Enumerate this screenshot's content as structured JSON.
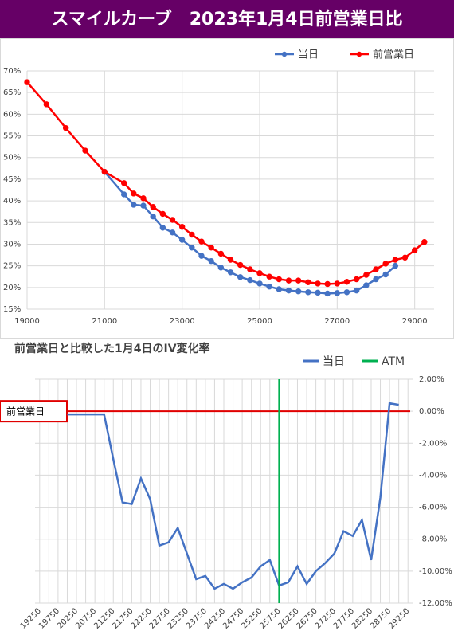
{
  "title": "スマイルカーブ　2023年1月4日前営業日比",
  "chart_data": [
    {
      "type": "line",
      "series": [
        {
          "name": "当日",
          "color": "#4472c4",
          "x": [
            21000,
            21500,
            21750,
            22000,
            22250,
            22500,
            22750,
            23000,
            23250,
            23500,
            23750,
            24000,
            24250,
            24500,
            24750,
            25000,
            25250,
            25500,
            25750,
            26000,
            26250,
            26500,
            26750,
            27000,
            27250,
            27500,
            27750,
            28000,
            28250,
            28500
          ],
          "values": [
            46.7,
            41.5,
            39.1,
            38.9,
            36.4,
            33.8,
            32.7,
            31.0,
            29.2,
            27.3,
            26.1,
            24.6,
            23.5,
            22.4,
            21.7,
            20.9,
            20.2,
            19.6,
            19.3,
            19.1,
            18.9,
            18.8,
            18.6,
            18.7,
            18.9,
            19.3,
            20.5,
            21.9,
            23.0,
            25.0
          ]
        },
        {
          "name": "前営業日",
          "color": "#ff0000",
          "x": [
            19000,
            19500,
            20000,
            20500,
            21000,
            21500,
            21750,
            22000,
            22250,
            22500,
            22750,
            23000,
            23250,
            23500,
            23750,
            24000,
            24250,
            24500,
            24750,
            25000,
            25250,
            25500,
            25750,
            26000,
            26250,
            26500,
            26750,
            27000,
            27250,
            27500,
            27750,
            28000,
            28250,
            28500,
            28750,
            29000,
            29250
          ],
          "values": [
            67.4,
            62.3,
            56.8,
            51.6,
            46.7,
            44.1,
            41.7,
            40.6,
            38.6,
            37.0,
            35.6,
            34.0,
            32.2,
            30.6,
            29.2,
            27.8,
            26.4,
            25.2,
            24.2,
            23.3,
            22.5,
            21.9,
            21.6,
            21.6,
            21.2,
            20.9,
            20.8,
            20.9,
            21.3,
            21.9,
            22.9,
            24.2,
            25.5,
            26.4,
            26.9,
            28.6,
            30.5
          ]
        }
      ],
      "xlim": [
        19000,
        29500
      ],
      "xticks": [
        19000,
        21000,
        23000,
        25000,
        27000,
        29000
      ],
      "ylim": [
        15,
        70
      ],
      "yticks": [
        {
          "value": 15,
          "label": "15%"
        },
        {
          "value": 20,
          "label": "20%"
        },
        {
          "value": 25,
          "label": "25%"
        },
        {
          "value": 30,
          "label": "30%"
        },
        {
          "value": 35,
          "label": "35%"
        },
        {
          "value": 40,
          "label": "40%"
        },
        {
          "value": 45,
          "label": "45%"
        },
        {
          "value": 50,
          "label": "50%"
        },
        {
          "value": 55,
          "label": "55%"
        },
        {
          "value": 60,
          "label": "60%"
        },
        {
          "value": 65,
          "label": "65%"
        },
        {
          "value": 70,
          "label": "70%"
        }
      ],
      "grid": true,
      "legend": "top-right"
    },
    {
      "type": "category-line",
      "title": "前営業日と比較した1月4日のIV変化率",
      "categories": [
        "19250",
        null,
        "19750",
        null,
        "20250",
        null,
        "20750",
        null,
        "21250",
        null,
        "21750",
        null,
        "22250",
        null,
        "22750",
        null,
        "23250",
        null,
        "23750",
        null,
        "24250",
        null,
        "24750",
        null,
        "25250",
        null,
        "25750",
        null,
        "26250",
        null,
        "26750",
        null,
        "27250",
        null,
        "27750",
        null,
        "28250",
        null,
        "28750",
        null,
        "29250"
      ],
      "series": [
        {
          "name": "当日",
          "color": "#4472c4",
          "values": [
            null,
            null,
            null,
            -0.2,
            -0.2,
            -0.2,
            -0.2,
            -0.2,
            -3.0,
            -5.7,
            -5.8,
            -4.2,
            -5.5,
            -8.4,
            -8.2,
            -7.3,
            -8.9,
            -10.5,
            -10.3,
            -11.1,
            -10.8,
            -11.1,
            -10.7,
            -10.4,
            -9.7,
            -9.3,
            -10.9,
            -10.7,
            -9.7,
            -10.8,
            -10.0,
            -9.5,
            -8.9,
            -7.5,
            -7.8,
            -6.8,
            -9.3,
            -5.4,
            0.5,
            0.4,
            null
          ]
        },
        {
          "name": "ATM",
          "color": "#00b050",
          "category": "25750"
        }
      ],
      "reference_line": {
        "label": "前営業日",
        "value": 0,
        "color": "#e00000"
      },
      "ylim": [
        -12,
        2
      ],
      "yticks": [
        {
          "value": 2,
          "label": "2.00%"
        },
        {
          "value": 0,
          "label": "0.00%"
        },
        {
          "value": -2,
          "label": "-2.00%"
        },
        {
          "value": -4,
          "label": "-4.00%"
        },
        {
          "value": -6,
          "label": "-6.00%"
        },
        {
          "value": -8,
          "label": "-8.00%"
        },
        {
          "value": -10,
          "label": "-10.00%"
        },
        {
          "value": -12,
          "label": "-12.00%"
        }
      ],
      "yaxis_side": "right",
      "grid": true,
      "legend": "top-right"
    }
  ]
}
